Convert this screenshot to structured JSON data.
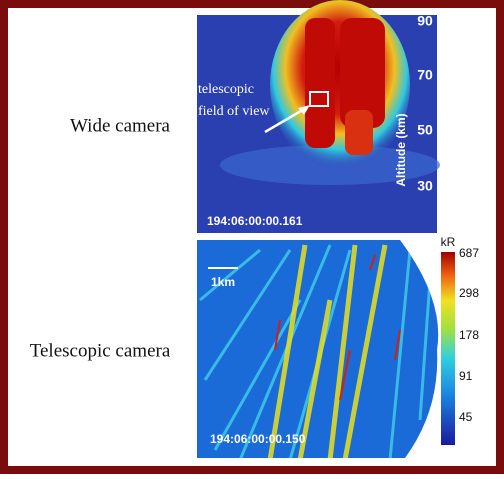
{
  "wide_camera": {
    "label": "Wide camera",
    "annotation": [
      "telescopic",
      "field of view"
    ],
    "altitude_ticks": [
      "90",
      "70",
      "50",
      "30"
    ],
    "axis_title": "Altitude (km)",
    "timestamp": "194:06:00:00.161"
  },
  "telescopic_camera": {
    "label": "Telescopic camera",
    "scale": "1km",
    "timestamp": "194:06:00:00.150"
  },
  "colorbar": {
    "unit": "kR",
    "labels": [
      "687",
      "298",
      "178",
      "91",
      "45"
    ]
  }
}
